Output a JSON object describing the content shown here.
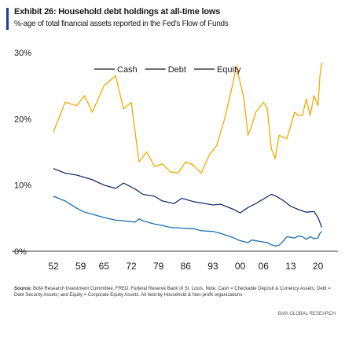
{
  "header": {
    "title": "Exhibit 26: Household debt holdings at all-time lows",
    "subtitle": "%-age of total financial assets reported in the Fed's Flow of Funds"
  },
  "notes": {
    "source_label": "Source:",
    "source_text": "BofA Research Investment Committee, FRED, Federal Reserve Bank of St. Louis. Note: Cash = Checkable Deposit & Currency Assets; Debt = Debt Security Assets; and Equity = Corporate Equity Assets. All held by Household & Non-profit organizations"
  },
  "footer": {
    "credit": "BofA GLOBAL RESEARCH"
  },
  "colors": {
    "cash": "#1b6fb0",
    "debt": "#1c2f6e",
    "equity": "#f2a900",
    "accent": "#1f3f8c"
  },
  "chart_data": {
    "type": "line",
    "title": "Exhibit 26: Household debt holdings at all-time lows",
    "subtitle": "%-age of total financial assets reported in the Fed's Flow of Funds",
    "xlabel": "",
    "ylabel": "",
    "xlim": [
      1952,
      2021.5
    ],
    "ylim": [
      0,
      30
    ],
    "x_ticks": [
      1952,
      1959,
      1965,
      1972,
      1979,
      1986,
      1993,
      2000,
      2006,
      2013,
      2020
    ],
    "x_tick_labels": [
      "52",
      "59",
      "65",
      "72",
      "79",
      "86",
      "93",
      "00",
      "06",
      "13",
      "20"
    ],
    "y_ticks": [
      0,
      10,
      20,
      30
    ],
    "y_tick_labels": [
      "0%",
      "10%",
      "20%",
      "30%"
    ],
    "grid": false,
    "legend_position": "top-center",
    "series": [
      {
        "name": "Cash",
        "color_key": "cash",
        "x": [
          1952,
          1955,
          1958,
          1960,
          1962,
          1965,
          1968,
          1970,
          1973,
          1974,
          1975,
          1978,
          1980,
          1982,
          1985,
          1988,
          1990,
          1993,
          1995,
          1998,
          2000,
          2002,
          2003,
          2005,
          2007,
          2008,
          2009,
          2010,
          2011,
          2012,
          2014,
          2015,
          2016,
          2017,
          2018,
          2019,
          2020,
          2020.5,
          2021
        ],
        "y": [
          8.3,
          7.6,
          6.5,
          5.9,
          5.6,
          5.1,
          4.7,
          4.6,
          4.4,
          4.9,
          4.6,
          4.1,
          3.9,
          3.6,
          3.5,
          3.4,
          3.1,
          3.0,
          2.7,
          2.1,
          1.6,
          1.3,
          1.7,
          1.5,
          1.3,
          1.0,
          0.8,
          0.9,
          1.5,
          2.2,
          2.0,
          2.3,
          2.2,
          1.8,
          2.2,
          1.9,
          2.0,
          2.7,
          3.0
        ]
      },
      {
        "name": "Debt",
        "color_key": "debt",
        "x": [
          1952,
          1955,
          1958,
          1962,
          1965,
          1968,
          1970,
          1973,
          1975,
          1978,
          1980,
          1983,
          1985,
          1988,
          1990,
          1993,
          1995,
          1998,
          2000,
          2002,
          2004,
          2006,
          2008,
          2009,
          2011,
          2013,
          2015,
          2017,
          2019,
          2020,
          2021
        ],
        "y": [
          12.5,
          11.8,
          11.5,
          10.8,
          10.0,
          9.5,
          10.3,
          9.4,
          8.6,
          8.3,
          7.6,
          7.2,
          8.0,
          7.5,
          7.3,
          7.0,
          7.1,
          6.4,
          5.8,
          6.6,
          7.2,
          7.9,
          8.6,
          8.4,
          7.7,
          6.8,
          6.3,
          5.9,
          6.0,
          5.1,
          3.6
        ]
      },
      {
        "name": "Equity",
        "color_key": "equity",
        "x": [
          1952,
          1955,
          1958,
          1960,
          1962,
          1965,
          1968,
          1970,
          1972,
          1974,
          1976,
          1978,
          1980,
          1982,
          1984,
          1986,
          1988,
          1990,
          1992,
          1994,
          1996,
          1998,
          1999,
          2000,
          2001,
          2002,
          2003,
          2004,
          2006,
          2007,
          2008,
          2009,
          2010,
          2012,
          2014,
          2015,
          2016,
          2017,
          2018,
          2019,
          2020,
          2020.5,
          2021
        ],
        "y": [
          18.0,
          22.5,
          22.0,
          23.5,
          21.0,
          25.0,
          26.5,
          21.5,
          22.5,
          13.5,
          15.0,
          12.8,
          13.2,
          12.0,
          11.8,
          13.5,
          13.0,
          11.8,
          14.5,
          16.0,
          20.0,
          25.0,
          28.0,
          25.5,
          23.0,
          17.5,
          19.0,
          21.0,
          22.5,
          21.5,
          15.5,
          14.0,
          17.5,
          17.0,
          21.0,
          20.5,
          20.5,
          23.0,
          20.5,
          23.5,
          22.0,
          26.5,
          28.5
        ]
      }
    ]
  }
}
